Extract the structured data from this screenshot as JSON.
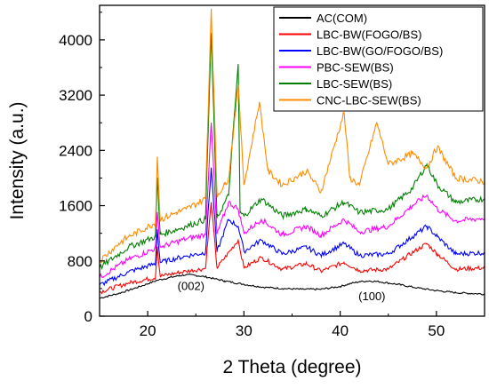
{
  "chart_data": {
    "type": "line",
    "xlabel": "2 Theta (degree)",
    "ylabel": "Intensity (a.u.)",
    "xlim": [
      15,
      55
    ],
    "ylim": [
      0,
      4500
    ],
    "x_ticks": [
      20,
      30,
      40,
      50
    ],
    "y_ticks": [
      0,
      800,
      1600,
      2400,
      3200,
      4000
    ],
    "grid": false,
    "legend": "top-right",
    "annotations": [
      {
        "text": "(002)",
        "x": 24.5,
        "y": 380
      },
      {
        "text": "(100)",
        "x": 43.3,
        "y": 230
      }
    ],
    "series": [
      {
        "name": "AC(COM)",
        "color": "#000000",
        "x": [
          15,
          17,
          19,
          21,
          23,
          24,
          25,
          26,
          27,
          28,
          30,
          32,
          34,
          36,
          38,
          40,
          41,
          42,
          43,
          44,
          46,
          48,
          50,
          52,
          55
        ],
        "values": [
          260,
          330,
          420,
          520,
          580,
          600,
          590,
          570,
          540,
          510,
          460,
          420,
          400,
          390,
          390,
          430,
          470,
          500,
          510,
          500,
          460,
          410,
          370,
          340,
          320
        ]
      },
      {
        "name": "LBC-BW(FOGO/BS)",
        "color": "#ff0000",
        "x": [
          15,
          18,
          20.8,
          21,
          21.3,
          24,
          26,
          26.6,
          27.2,
          29.4,
          30,
          31.8,
          34,
          36.5,
          38,
          40.4,
          42,
          45,
          47.5,
          49,
          50.1,
          52,
          55
        ],
        "values": [
          350,
          480,
          560,
          1000,
          580,
          650,
          690,
          1650,
          700,
          1100,
          700,
          850,
          680,
          760,
          650,
          780,
          660,
          680,
          920,
          1050,
          900,
          680,
          700
        ]
      },
      {
        "name": "LBC-BW(GO/FOGO/BS)",
        "color": "#0000ff",
        "x": [
          15,
          18,
          20.8,
          21,
          21.3,
          24,
          26,
          26.6,
          27.2,
          28.4,
          29.4,
          30,
          31.8,
          34,
          36.5,
          38,
          40.4,
          42,
          45,
          47.5,
          49,
          50.1,
          52,
          55
        ],
        "values": [
          450,
          640,
          760,
          1250,
          780,
          870,
          920,
          2150,
          930,
          1400,
          1300,
          940,
          1100,
          900,
          1000,
          880,
          1050,
          880,
          900,
          1150,
          1300,
          1150,
          900,
          920
        ]
      },
      {
        "name": "PBC-SEW(BS)",
        "color": "#ff00ff",
        "x": [
          15,
          18,
          20.8,
          21,
          21.3,
          24,
          26,
          26.6,
          27.2,
          28.4,
          29.4,
          30,
          31.8,
          34,
          36.5,
          38,
          40.4,
          42,
          45,
          47.5,
          49,
          50.1,
          52,
          55
        ],
        "values": [
          560,
          820,
          980,
          1500,
          1000,
          1120,
          1180,
          2800,
          1190,
          1650,
          1550,
          1200,
          1400,
          1180,
          1300,
          1170,
          1400,
          1220,
          1300,
          1600,
          1750,
          1550,
          1380,
          1420
        ]
      },
      {
        "name": "LBC-SEW(BS)",
        "color": "#008000",
        "x": [
          15,
          18,
          20.8,
          21,
          21.3,
          24,
          26,
          26.6,
          27.2,
          28.4,
          29.4,
          29.6,
          30,
          31.8,
          34,
          36.5,
          38,
          40.4,
          42,
          45,
          47.5,
          49,
          50.1,
          52,
          55
        ],
        "values": [
          700,
          1000,
          1150,
          2000,
          1180,
          1300,
          1400,
          4100,
          1420,
          1750,
          3650,
          1500,
          1450,
          1700,
          1450,
          1550,
          1450,
          1650,
          1500,
          1550,
          1850,
          2200,
          1900,
          1650,
          1700
        ]
      },
      {
        "name": "CNC-LBC-SEW(BS)",
        "color": "#ff8c00",
        "x": [
          15,
          17,
          18,
          20.8,
          21,
          21.3,
          23,
          24,
          26,
          26.6,
          27.2,
          28,
          28.4,
          29.4,
          30,
          31.6,
          32.5,
          34,
          36.5,
          38,
          40.4,
          41,
          42,
          43.8,
          45,
          47.5,
          49,
          50.1,
          52,
          55
        ],
        "values": [
          800,
          1050,
          1150,
          1350,
          2300,
          1400,
          1500,
          1550,
          1700,
          4450,
          1750,
          1900,
          2000,
          3350,
          1900,
          3100,
          2100,
          1900,
          2100,
          1800,
          2950,
          2000,
          1900,
          2800,
          2200,
          2350,
          2150,
          2450,
          2000,
          1950
        ]
      }
    ]
  }
}
